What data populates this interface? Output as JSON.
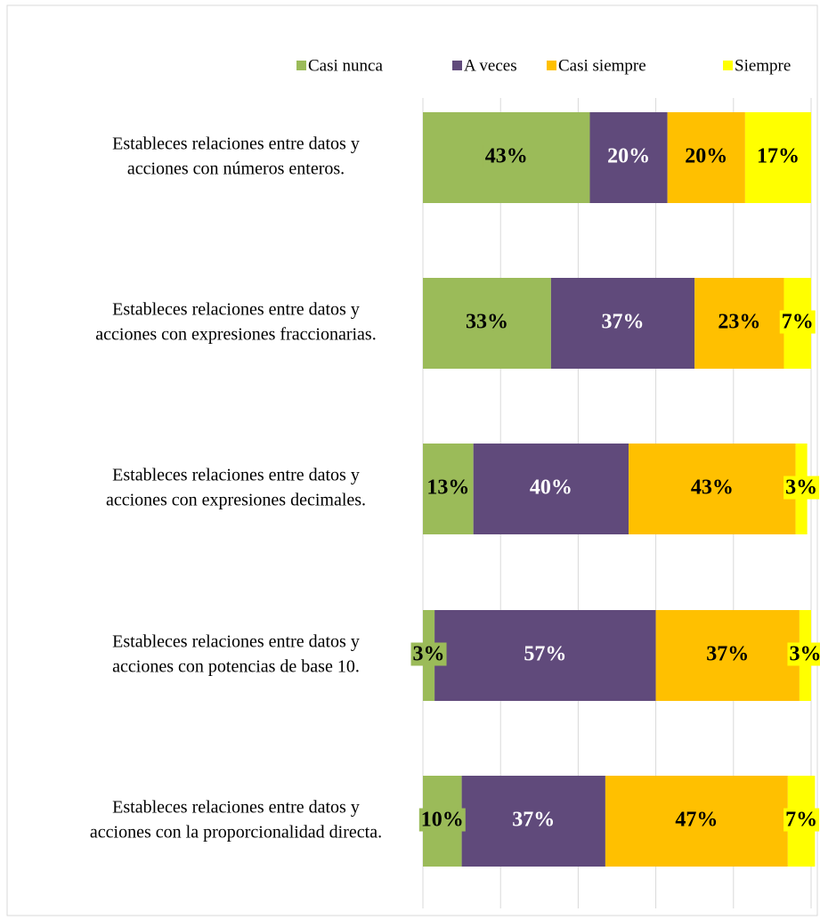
{
  "chart_data": {
    "type": "stacked-barh",
    "categories": [
      [
        "Estableces relaciones entre datos y",
        "acciones con números enteros."
      ],
      [
        "Estableces relaciones entre datos y",
        "acciones con expresiones fraccionarias."
      ],
      [
        "Estableces relaciones entre datos y",
        "acciones con expresiones decimales."
      ],
      [
        "Estableces relaciones entre datos y",
        "acciones con potencias de base 10."
      ],
      [
        "Estableces relaciones entre datos y",
        "acciones con la proporcionalidad directa."
      ]
    ],
    "series": [
      {
        "name": "Casi nunca",
        "color": "#9bbb59",
        "values": [
          43,
          33,
          13,
          3,
          10
        ],
        "value_labels": [
          "43%",
          "33%",
          "13%",
          "3%",
          "10%"
        ]
      },
      {
        "name": "A veces",
        "color": "#604a7b",
        "values": [
          20,
          37,
          40,
          57,
          37
        ],
        "value_labels": [
          "20%",
          "37%",
          "40%",
          "57%",
          "37%"
        ]
      },
      {
        "name": "Casi siempre",
        "color": "#ffc000",
        "values": [
          20,
          23,
          43,
          37,
          47
        ],
        "value_labels": [
          "20%",
          "23%",
          "43%",
          "37%",
          "47%"
        ]
      },
      {
        "name": "Siempre",
        "color": "#ffff00",
        "values": [
          17,
          7,
          3,
          3,
          7
        ],
        "value_labels": [
          "17%",
          "7%",
          "3%",
          "3%",
          "7%"
        ]
      }
    ],
    "xlim": [
      0,
      100
    ],
    "xticks": [
      0,
      20,
      40,
      60,
      80,
      100
    ],
    "grid": true,
    "legend": "top-right"
  }
}
